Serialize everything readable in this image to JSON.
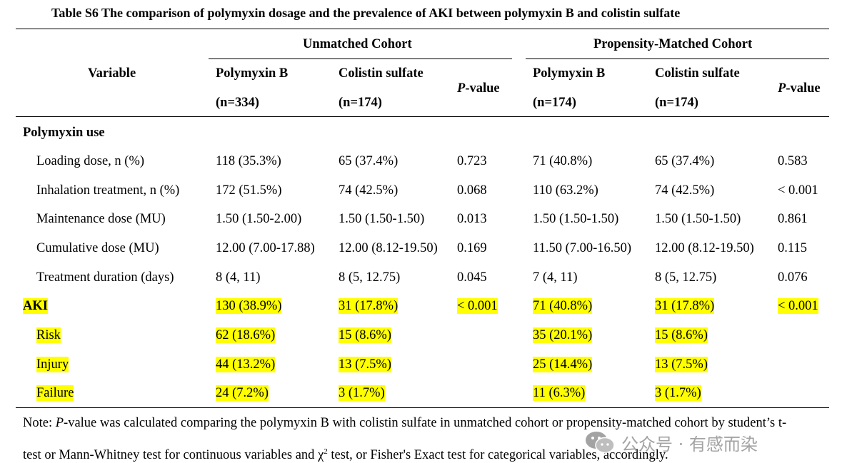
{
  "title": "Table S6 The comparison of polymyxin dosage and the prevalence of AKI between polymyxin B and colistin sulfate",
  "header": {
    "variable": "Variable",
    "unmatched": "Unmatched Cohort",
    "matched": "Propensity-Matched Cohort",
    "pb": "Polymyxin B",
    "cs": "Colistin sulfate",
    "pv_italic": "P",
    "pv_rest": "-value",
    "n334": "(n=334)",
    "n174": "(n=174)"
  },
  "section": "Polymyxin use",
  "rows": [
    {
      "label": "Loading dose, n (%)",
      "u_pb": "118 (35.3%)",
      "u_cs": "65 (37.4%)",
      "u_p": "0.723",
      "m_pb": "71 (40.8%)",
      "m_cs": "65 (37.4%)",
      "m_p": "0.583"
    },
    {
      "label": "Inhalation treatment, n (%)",
      "u_pb": "172 (51.5%)",
      "u_cs": "74 (42.5%)",
      "u_p": "0.068",
      "m_pb": "110 (63.2%)",
      "m_cs": "74 (42.5%)",
      "m_p": "< 0.001"
    },
    {
      "label": "Maintenance dose (MU)",
      "u_pb": "1.50 (1.50-2.00)",
      "u_cs": "1.50 (1.50-1.50)",
      "u_p": "0.013",
      "m_pb": "1.50 (1.50-1.50)",
      "m_cs": "1.50 (1.50-1.50)",
      "m_p": "0.861"
    },
    {
      "label": "Cumulative dose (MU)",
      "u_pb": "12.00 (7.00-17.88)",
      "u_cs": "12.00 (8.12-19.50)",
      "u_p": "0.169",
      "m_pb": "11.50 (7.00-16.50)",
      "m_cs": "12.00 (8.12-19.50)",
      "m_p": "0.115"
    },
    {
      "label": "Treatment duration (days)",
      "u_pb": "8 (4, 11)",
      "u_cs": "8 (5, 12.75)",
      "u_p": "0.045",
      "m_pb": "7 (4, 11)",
      "m_cs": "8 (5, 12.75)",
      "m_p": "0.076"
    },
    {
      "label": "AKI",
      "u_pb": "130 (38.9%)",
      "u_cs": "31 (17.8%)",
      "u_p": "< 0.001",
      "m_pb": "71 (40.8%)",
      "m_cs": "31 (17.8%)",
      "m_p": "< 0.001"
    },
    {
      "label": "Risk",
      "u_pb": "62 (18.6%)",
      "u_cs": "15 (8.6%)",
      "u_p": "",
      "m_pb": "35 (20.1%)",
      "m_cs": "15 (8.6%)",
      "m_p": ""
    },
    {
      "label": "Injury",
      "u_pb": "44 (13.2%)",
      "u_cs": "13 (7.5%)",
      "u_p": "",
      "m_pb": "25 (14.4%)",
      "m_cs": "13 (7.5%)",
      "m_p": ""
    },
    {
      "label": "Failure",
      "u_pb": "24 (7.2%)",
      "u_cs": "3 (1.7%)",
      "u_p": "",
      "m_pb": "11 (6.3%)",
      "m_cs": "3 (1.7%)",
      "m_p": ""
    }
  ],
  "note": {
    "prefix": "Note: ",
    "p_italic": "P",
    "line1_rest": "-value was calculated comparing the polymyxin B with colistin sulfate in unmatched cohort or propensity-matched cohort by student’s t-",
    "line2_a": "test or Mann-Whitney test for continuous variables and ",
    "chi": "χ",
    "sup2": "2",
    "line2_b": " test, or Fisher's Exact test for categorical variables, accordingly."
  },
  "watermark": {
    "text": "公众号 · 有感而染",
    "icon": "wechat-icon"
  },
  "colors": {
    "highlight": "#ffff00",
    "watermark": "#9a9a9a"
  }
}
